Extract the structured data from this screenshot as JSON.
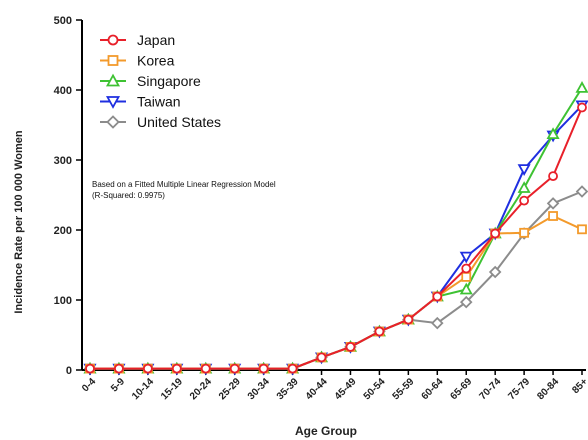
{
  "chart_data": {
    "type": "line",
    "xlabel": "Age Group",
    "ylabel": "Incidence Rate per 100 000 Women",
    "ylim": [
      0,
      500
    ],
    "yticks": [
      0,
      100,
      200,
      300,
      400,
      500
    ],
    "grid": false,
    "legend_position": "top-left",
    "annotation": [
      "Based on a Fitted Multiple Linear Regression Model",
      "(R-Squared: 0.9975)"
    ],
    "categories": [
      "0-4",
      "5-9",
      "10-14",
      "15-19",
      "20-24",
      "25-29",
      "30-34",
      "35-39",
      "40-44",
      "45-49",
      "50-54",
      "55-59",
      "60-64",
      "65-69",
      "70-74",
      "75-79",
      "80-84",
      "85+"
    ],
    "series": [
      {
        "name": "Japan",
        "color": "#e8202a",
        "marker": "circle",
        "values": [
          2,
          2,
          2,
          2,
          2,
          2,
          2,
          2,
          18,
          33,
          55,
          72,
          105,
          145,
          195,
          242,
          277,
          375
        ]
      },
      {
        "name": "Korea",
        "color": "#f39a2b",
        "marker": "square",
        "values": [
          2,
          2,
          2,
          2,
          2,
          2,
          2,
          2,
          18,
          33,
          55,
          72,
          105,
          133,
          195,
          196,
          220,
          201
        ]
      },
      {
        "name": "Singapore",
        "color": "#3ec233",
        "marker": "triangle-up",
        "values": [
          2,
          2,
          2,
          2,
          2,
          2,
          2,
          2,
          18,
          33,
          55,
          72,
          105,
          115,
          195,
          260,
          337,
          403
        ]
      },
      {
        "name": "Taiwan",
        "color": "#1f2fe0",
        "marker": "triangle-down",
        "values": [
          2,
          2,
          2,
          2,
          2,
          2,
          2,
          2,
          18,
          33,
          55,
          72,
          105,
          162,
          195,
          287,
          335,
          378
        ]
      },
      {
        "name": "United States",
        "color": "#8c8c8c",
        "marker": "diamond",
        "values": [
          2,
          2,
          2,
          2,
          2,
          2,
          2,
          2,
          18,
          33,
          55,
          72,
          67,
          97,
          140,
          195,
          238,
          255
        ]
      }
    ]
  }
}
